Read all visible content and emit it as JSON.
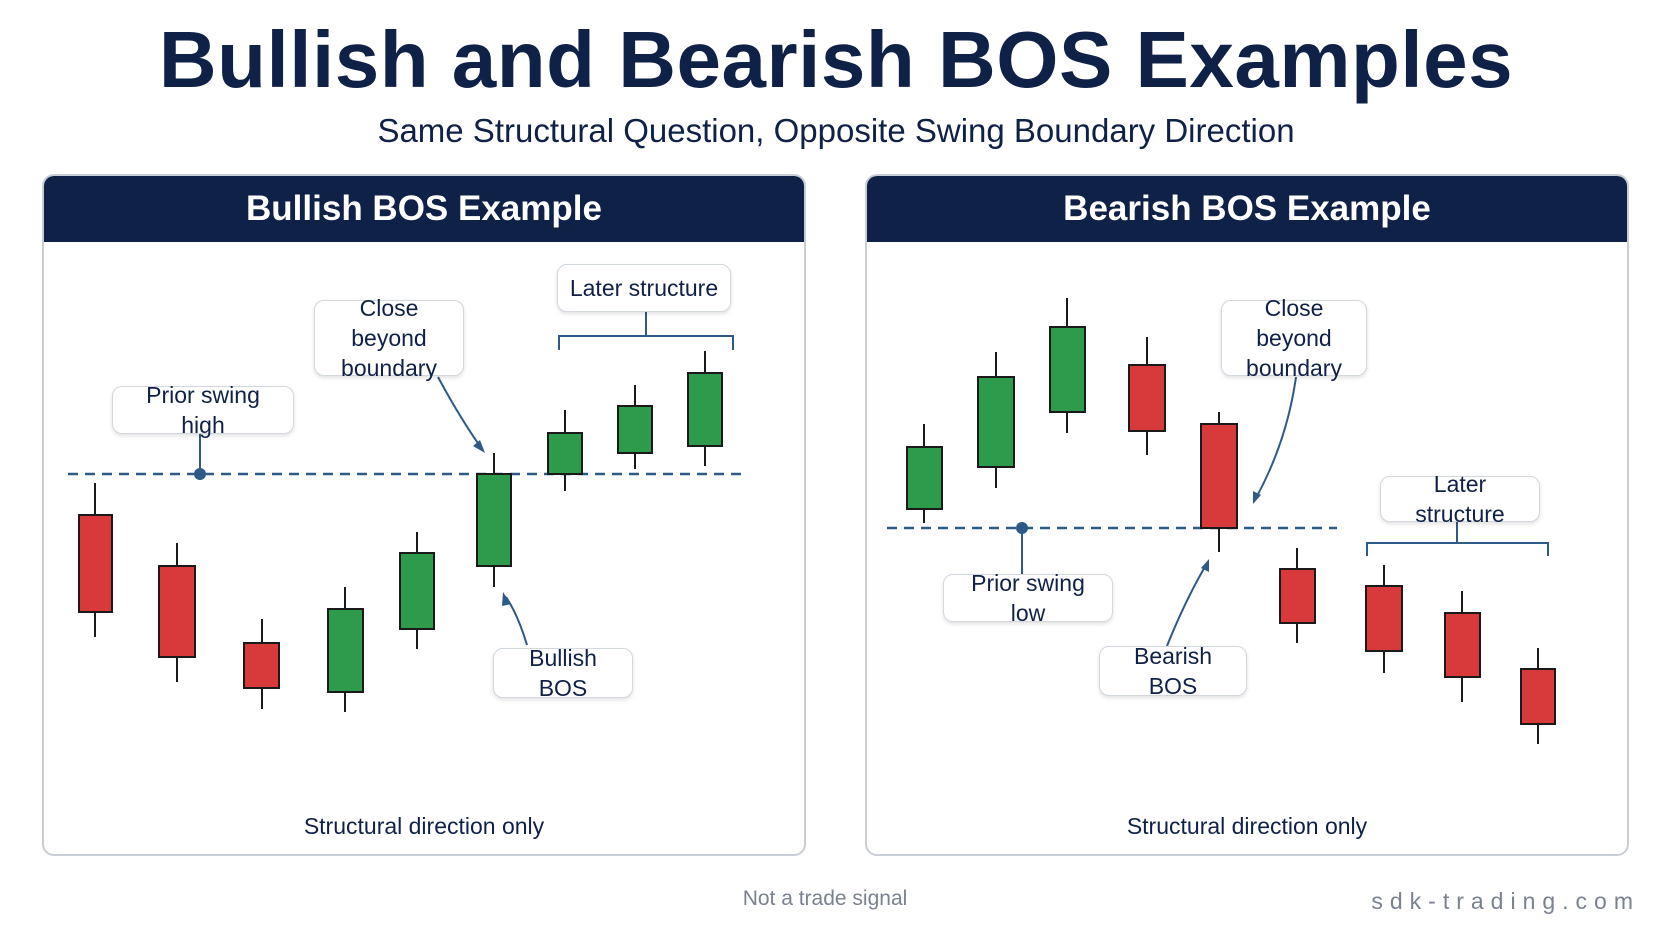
{
  "title": "Bullish and Bearish BOS Examples",
  "subtitle": "Same Structural Question, Opposite Swing Boundary Direction",
  "colors": {
    "navy": "#0f2147",
    "bull": "#2e9a4b",
    "bear": "#d8393b",
    "line": "#2d5a86"
  },
  "panels": {
    "bullish": {
      "header": "Bullish BOS Example",
      "callouts": {
        "prior_swing": "Prior swing high",
        "close_beyond": "Close beyond boundary",
        "later_structure": "Later structure",
        "bos": "Bullish BOS"
      },
      "caption": "Structural direction only"
    },
    "bearish": {
      "header": "Bearish BOS Example",
      "callouts": {
        "prior_swing": "Prior swing low",
        "close_beyond": "Close beyond boundary",
        "later_structure": "Later structure",
        "bos": "Bearish BOS"
      },
      "caption": "Structural direction only"
    }
  },
  "footer": {
    "note": "Not a trade signal",
    "brand": "sdk-trading.com"
  }
}
